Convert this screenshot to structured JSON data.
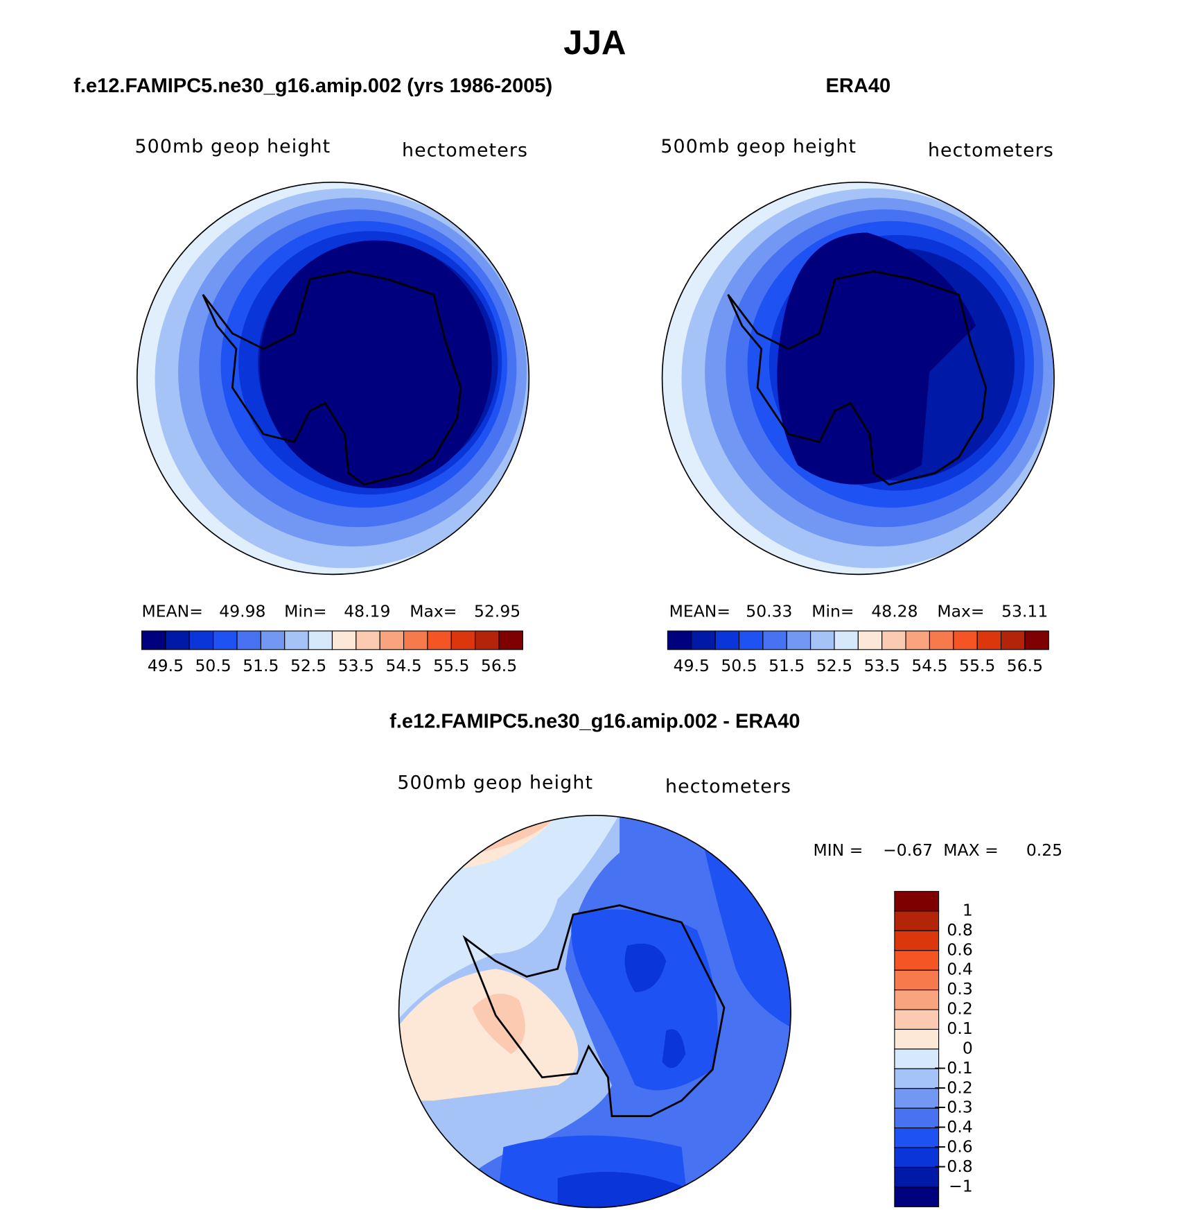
{
  "title": "JJA",
  "panels": [
    {
      "title": "f.e12.FAMIPC5.ne30_g16.amip.002 (yrs 1986-2005)",
      "left_string": "500mb  geop  height",
      "right_string": "hectometers",
      "stats": [
        "MEAN=",
        "49.98",
        "Min=",
        "48.19",
        "Max=",
        "52.95"
      ],
      "colorbar": {
        "labels": [
          "49.5",
          "50.5",
          "51.5",
          "52.5",
          "53.5",
          "54.5",
          "55.5",
          "56.5"
        ],
        "colors": [
          "#00007f",
          "#0019a6",
          "#0a35d8",
          "#1f52f2",
          "#4773f2",
          "#7398f3",
          "#a6c3f7",
          "#d6e8fc",
          "#fde7d6",
          "#fcc9b1",
          "#f9a47e",
          "#f77a4c",
          "#f55524",
          "#db360c",
          "#b32408",
          "#7f0000"
        ]
      }
    },
    {
      "title": "ERA40",
      "left_string": "500mb  geop  height",
      "right_string": "hectometers",
      "stats": [
        "MEAN=",
        "50.33",
        "Min=",
        "48.28",
        "Max=",
        "53.11"
      ],
      "colorbar": {
        "labels": [
          "49.5",
          "50.5",
          "51.5",
          "52.5",
          "53.5",
          "54.5",
          "55.5",
          "56.5"
        ],
        "colors": [
          "#00007f",
          "#0019a6",
          "#0a35d8",
          "#1f52f2",
          "#4773f2",
          "#7398f3",
          "#a6c3f7",
          "#d6e8fc",
          "#fde7d6",
          "#fcc9b1",
          "#f9a47e",
          "#f77a4c",
          "#f55524",
          "#db360c",
          "#b32408",
          "#7f0000"
        ]
      }
    },
    {
      "title": "f.e12.FAMIPC5.ne30_g16.amip.002 - ERA40",
      "left_string": "500mb  geop  height",
      "right_string": "hectometers",
      "stats": [
        "MIN =",
        "−0.67",
        "MAX =",
        "0.25"
      ],
      "colorbar": {
        "labels": [
          "1",
          "0.8",
          "0.6",
          "0.4",
          "0.3",
          "0.2",
          "0.1",
          "0",
          "−0.1",
          "−0.2",
          "−0.3",
          "−0.4",
          "−0.6",
          "−0.8",
          "−1"
        ],
        "colors": [
          "#7f0000",
          "#b32408",
          "#db360c",
          "#f55524",
          "#f77a4c",
          "#f9a47e",
          "#fcc9b1",
          "#fde7d6",
          "#d6e8fc",
          "#a6c3f7",
          "#7398f3",
          "#4773f2",
          "#1f52f2",
          "#0a35d8",
          "#0019a6",
          "#00007f"
        ]
      }
    }
  ]
}
